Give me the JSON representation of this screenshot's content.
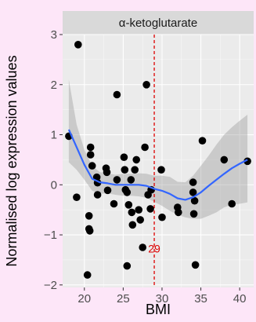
{
  "chart_data": {
    "type": "scatter",
    "facet_title": "α-ketoglutarate",
    "xlabel": "BMI",
    "ylabel": "Normalised log expression values",
    "xlim": [
      17.2,
      41.8
    ],
    "ylim": [
      -2.05,
      3.0
    ],
    "x_ticks": [
      20,
      25,
      30,
      35,
      40
    ],
    "x_tick_labels": [
      "20",
      "25",
      "30",
      "35",
      "40"
    ],
    "y_ticks": [
      -2,
      -1,
      0,
      1,
      2,
      3
    ],
    "y_tick_labels": [
      "−2",
      "−1",
      "0",
      "1",
      "2",
      "3"
    ],
    "grid": true,
    "reference_line": {
      "x": 29,
      "label": "29",
      "color": "#dd0000"
    },
    "points": [
      {
        "x": 18.0,
        "y": 0.97
      },
      {
        "x": 19.2,
        "y": 2.8
      },
      {
        "x": 19.0,
        "y": -0.25
      },
      {
        "x": 20.6,
        "y": -0.88
      },
      {
        "x": 20.7,
        "y": -0.92
      },
      {
        "x": 20.6,
        "y": -0.62
      },
      {
        "x": 20.8,
        "y": 0.6
      },
      {
        "x": 20.8,
        "y": 0.75
      },
      {
        "x": 21.0,
        "y": 0.38
      },
      {
        "x": 21.7,
        "y": 0.04
      },
      {
        "x": 21.7,
        "y": -0.2
      },
      {
        "x": 21.6,
        "y": 0.15
      },
      {
        "x": 22.8,
        "y": 0.33
      },
      {
        "x": 22.9,
        "y": 0.25
      },
      {
        "x": 23.0,
        "y": -0.11
      },
      {
        "x": 23.8,
        "y": -0.38
      },
      {
        "x": 24.2,
        "y": 1.8
      },
      {
        "x": 24.2,
        "y": 0.1
      },
      {
        "x": 25.1,
        "y": 0.55
      },
      {
        "x": 25.2,
        "y": 0.3
      },
      {
        "x": 25.3,
        "y": -0.1
      },
      {
        "x": 25.5,
        "y": -0.15
      },
      {
        "x": 25.7,
        "y": -0.4
      },
      {
        "x": 26.0,
        "y": 0.1
      },
      {
        "x": 26.1,
        "y": -0.55
      },
      {
        "x": 26.2,
        "y": -0.8
      },
      {
        "x": 26.7,
        "y": 0.5
      },
      {
        "x": 26.5,
        "y": 0.3
      },
      {
        "x": 27.0,
        "y": -0.5
      },
      {
        "x": 27.2,
        "y": -0.7
      },
      {
        "x": 27.8,
        "y": 0.75
      },
      {
        "x": 28.0,
        "y": 2.0
      },
      {
        "x": 28.2,
        "y": -0.2
      },
      {
        "x": 28.5,
        "y": -0.48
      },
      {
        "x": 28.6,
        "y": -0.1
      },
      {
        "x": 27.5,
        "y": -1.25
      },
      {
        "x": 25.5,
        "y": -1.62
      },
      {
        "x": 20.4,
        "y": -1.8
      },
      {
        "x": 29.9,
        "y": 0.3
      },
      {
        "x": 30.0,
        "y": -0.65
      },
      {
        "x": 32.0,
        "y": -0.45
      },
      {
        "x": 32.1,
        "y": -0.55
      },
      {
        "x": 34.0,
        "y": 0.05
      },
      {
        "x": 34.0,
        "y": -0.15
      },
      {
        "x": 34.2,
        "y": -0.32
      },
      {
        "x": 34.1,
        "y": -0.58
      },
      {
        "x": 34.3,
        "y": -1.6
      },
      {
        "x": 35.2,
        "y": 0.88
      },
      {
        "x": 38.0,
        "y": 0.5
      },
      {
        "x": 39.0,
        "y": -0.38
      },
      {
        "x": 41.0,
        "y": 0.47
      }
    ],
    "trend": {
      "x": [
        18,
        19,
        20,
        21,
        22,
        23,
        24,
        25,
        26,
        27,
        28,
        29,
        30,
        31,
        32,
        33,
        34,
        35,
        36,
        37,
        38,
        39,
        40,
        41
      ],
      "y": [
        1.1,
        0.75,
        0.4,
        0.12,
        0.05,
        0.03,
        0.0,
        0.0,
        0.0,
        0.0,
        -0.02,
        -0.08,
        -0.12,
        -0.18,
        -0.27,
        -0.3,
        -0.25,
        -0.15,
        -0.02,
        0.1,
        0.22,
        0.33,
        0.42,
        0.5
      ],
      "lower": [
        0.45,
        0.3,
        0.1,
        -0.12,
        -0.18,
        -0.17,
        -0.2,
        -0.22,
        -0.22,
        -0.23,
        -0.26,
        -0.34,
        -0.42,
        -0.52,
        -0.6,
        -0.65,
        -0.68,
        -0.68,
        -0.62,
        -0.55,
        -0.45,
        -0.4,
        -0.38,
        -0.35
      ],
      "upper": [
        2.1,
        1.2,
        0.7,
        0.38,
        0.25,
        0.23,
        0.2,
        0.22,
        0.22,
        0.23,
        0.22,
        0.18,
        0.18,
        0.16,
        0.06,
        0.05,
        0.18,
        0.38,
        0.58,
        0.8,
        1.0,
        1.15,
        1.28,
        1.4
      ]
    },
    "colors": {
      "point": "#000000",
      "trend_line": "#3366ff",
      "ribbon": "#999999",
      "reference_line": "#dd0000",
      "panel": "#ebebeb",
      "strip": "#d9d9d9",
      "background": "#fde6f8"
    }
  }
}
